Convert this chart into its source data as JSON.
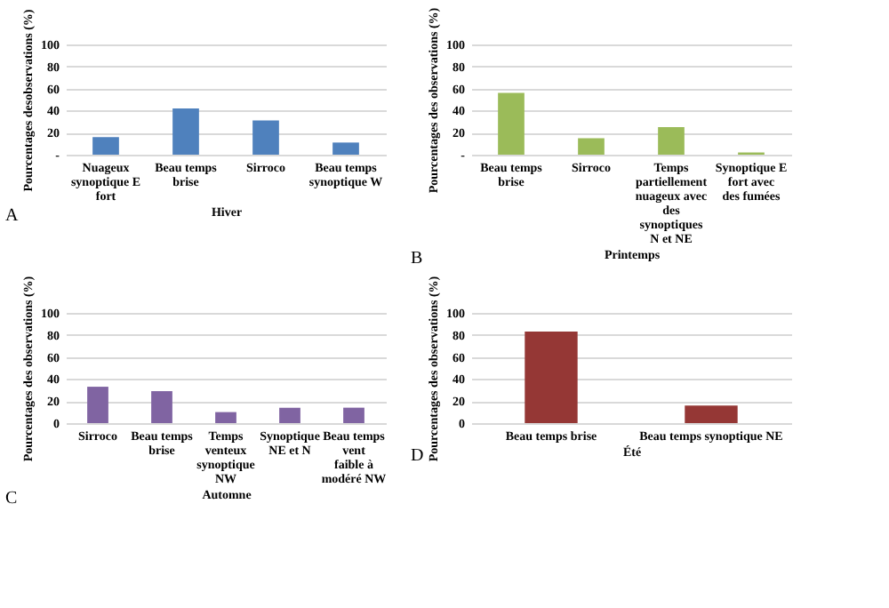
{
  "chart_data": [
    {
      "type": "bar",
      "categories": [
        "Nuageux synoptique E fort",
        "Beau temps brise",
        "Sirroco",
        "Beau temps synoptique W"
      ],
      "values": [
        16,
        42,
        31,
        11
      ],
      "color": "#4f81bd",
      "xlabel": "Hiver",
      "ylabel": "Pourcentages desobservations (%)",
      "ylim": [
        0,
        100
      ],
      "yticks": [
        {
          "value": 0,
          "label": "-"
        },
        20,
        40,
        60,
        80,
        100
      ],
      "grid": "y",
      "annotations": [
        "A"
      ]
    },
    {
      "type": "bar",
      "categories": [
        "Beau temps brise",
        "Sirroco",
        "Temps partiellement nuageux avec des synoptiques N et NE",
        "Synoptique E fort avec des fumées"
      ],
      "values": [
        56,
        15,
        25,
        2
      ],
      "color": "#9bbb59",
      "xlabel": "Printemps",
      "ylabel": "Pourcentages des observations (%)",
      "ylim": [
        0,
        100
      ],
      "yticks": [
        {
          "value": 0,
          "label": "-"
        },
        20,
        40,
        60,
        80,
        100
      ],
      "grid": "y",
      "annotations": [
        "B"
      ]
    },
    {
      "type": "bar",
      "categories": [
        "Sirroco",
        "Beau temps brise",
        "Temps venteux synoptique NW",
        "Synoptique NE et N",
        "Beau temps vent faible à modéré NW"
      ],
      "values": [
        33,
        29,
        10,
        14,
        14
      ],
      "color": "#8064a2",
      "xlabel": "Automne",
      "ylabel": "Pourcentages des observations (%)",
      "ylim": [
        0,
        100
      ],
      "yticks": [
        0,
        20,
        40,
        60,
        80,
        100
      ],
      "grid": "y",
      "annotations": [
        "C"
      ]
    },
    {
      "type": "bar",
      "categories": [
        "Beau temps brise",
        "Beau temps synoptique NE"
      ],
      "values": [
        83,
        16
      ],
      "color": "#953735",
      "xlabel": "Été",
      "ylabel": "Pourcentages des observations (%)",
      "ylim": [
        0,
        100
      ],
      "yticks": [
        0,
        20,
        40,
        60,
        80,
        100
      ],
      "grid": "y",
      "annotations": [
        "D"
      ]
    }
  ]
}
